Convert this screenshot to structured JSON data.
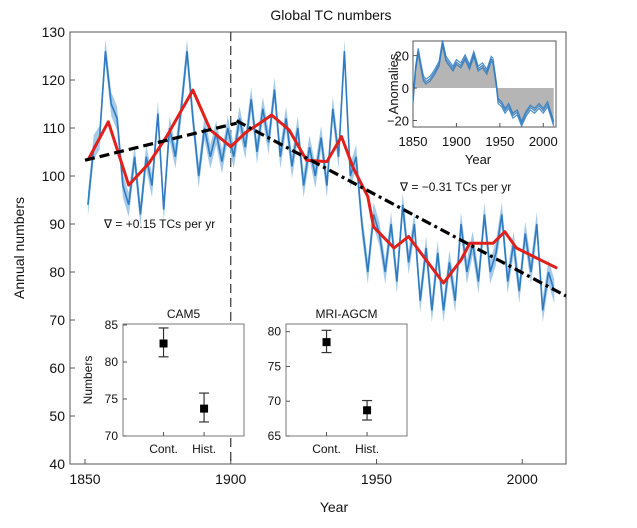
{
  "chart_data": [
    {
      "type": "line",
      "title": "Global TC numbers",
      "xlabel": "Year",
      "ylabel": "Annual numbers",
      "xlim": [
        1845,
        2015
      ],
      "ylim": [
        40,
        130
      ],
      "xticks": [
        1850,
        1900,
        1950,
        2000
      ],
      "yticks": [
        40,
        50,
        60,
        70,
        80,
        90,
        100,
        110,
        120,
        130
      ],
      "grid": false,
      "colors": {
        "annual": "#2f7bbf",
        "band": "#8fbde3",
        "smooth": "#e0201b",
        "trend": "#000000"
      },
      "annual": {
        "x": [
          1851,
          1853,
          1855,
          1857,
          1859,
          1861,
          1863,
          1865,
          1867,
          1869,
          1871,
          1873,
          1875,
          1877,
          1879,
          1881,
          1883,
          1885,
          1887,
          1889,
          1891,
          1893,
          1895,
          1897,
          1899,
          1901,
          1903,
          1905,
          1907,
          1909,
          1911,
          1913,
          1915,
          1917,
          1919,
          1921,
          1923,
          1925,
          1927,
          1929,
          1931,
          1933,
          1935,
          1937,
          1939,
          1941,
          1943,
          1945,
          1947,
          1949,
          1951,
          1953,
          1955,
          1957,
          1959,
          1961,
          1963,
          1965,
          1967,
          1969,
          1971,
          1973,
          1975,
          1977,
          1979,
          1981,
          1983,
          1985,
          1987,
          1989,
          1991,
          1993,
          1995,
          1997,
          1999,
          2001,
          2003,
          2005,
          2007,
          2009,
          2011
        ],
        "y": [
          94,
          106,
          108,
          126,
          115,
          112,
          98,
          94,
          104,
          92,
          104,
          98,
          113,
          93,
          110,
          104,
          114,
          126,
          112,
          100,
          110,
          104,
          109,
          103,
          110,
          104,
          112,
          106,
          116,
          105,
          114,
          107,
          118,
          104,
          112,
          102,
          110,
          98,
          106,
          100,
          108,
          98,
          114,
          104,
          126,
          100,
          104,
          90,
          80,
          92,
          88,
          80,
          90,
          78,
          94,
          82,
          90,
          74,
          85,
          72,
          84,
          72,
          82,
          74,
          90,
          80,
          86,
          78,
          92,
          80,
          84,
          92,
          78,
          86,
          76,
          88,
          80,
          90,
          72,
          80,
          76
        ],
        "spread": 2.5
      },
      "smoothed": {
        "x": [
          1851,
          1858,
          1865,
          1872,
          1878,
          1887,
          1893,
          1900,
          1905,
          1910,
          1914,
          1920,
          1926,
          1933,
          1938,
          1942,
          1947,
          1949,
          1956,
          1961,
          1967,
          1973,
          1979,
          1982,
          1990,
          1994,
          1998,
          2005,
          2012
        ],
        "y": [
          103.3,
          111.3,
          98.1,
          102.7,
          108.2,
          117.9,
          109.6,
          106.1,
          109,
          111,
          112.7,
          109.6,
          103.3,
          103,
          108.2,
          101.7,
          95.7,
          89.4,
          85,
          87.4,
          82.5,
          77.7,
          82.5,
          86,
          86,
          88.4,
          85,
          82.9,
          80.8
        ]
      },
      "trends": [
        {
          "label": "∇ = +0.15 TCs per yr",
          "x": [
            1850,
            1902
          ],
          "y": [
            103.3,
            111
          ]
        },
        {
          "label": "∇ = −0.31 TCs per yr",
          "x": [
            1902,
            2015
          ],
          "y": [
            111.5,
            75
          ]
        }
      ],
      "divider_year": 1900
    },
    {
      "type": "area",
      "xlabel": "Year",
      "ylabel": "Anomalies",
      "xlim": [
        1850,
        2015
      ],
      "ylim": [
        -24,
        29
      ],
      "xticks": [
        1850,
        1900,
        1950,
        2000
      ],
      "yticks": [
        -20,
        0,
        20
      ],
      "x": [
        1850,
        1853,
        1856,
        1859,
        1862,
        1865,
        1870,
        1875,
        1880,
        1884,
        1888,
        1892,
        1896,
        1900,
        1905,
        1910,
        1915,
        1920,
        1925,
        1930,
        1935,
        1940,
        1942,
        1946,
        1948,
        1952,
        1956,
        1960,
        1965,
        1970,
        1975,
        1980,
        1985,
        1990,
        1995,
        2000,
        2005,
        2008,
        2012
      ],
      "y": [
        -8,
        12,
        23,
        14,
        6,
        4,
        6,
        10,
        15,
        28,
        18,
        15,
        12,
        16,
        14,
        19,
        13,
        21,
        12,
        14,
        10,
        18,
        17,
        2,
        -8,
        -10,
        -14,
        -11,
        -17,
        -15,
        -22,
        -16,
        -12,
        -14,
        -11,
        -14,
        -10,
        -15,
        -22
      ]
    },
    {
      "type": "scatter",
      "title": "CAM5",
      "ylabel": "Numbers",
      "categories": [
        "Cont.",
        "Hist."
      ],
      "values": [
        82.5,
        73.7
      ],
      "error_low": [
        80.7,
        71.9
      ],
      "error_high": [
        84.6,
        75.8
      ],
      "ylim": [
        70,
        85
      ],
      "yticks": [
        70,
        75,
        80,
        85
      ]
    },
    {
      "type": "scatter",
      "title": "MRI-AGCM",
      "categories": [
        "Cont.",
        "Hist."
      ],
      "values": [
        78.5,
        68.7
      ],
      "error_low": [
        77,
        67.3
      ],
      "error_high": [
        80.2,
        70.1
      ],
      "ylim": [
        65,
        81
      ],
      "yticks": [
        65,
        70,
        75,
        80
      ]
    }
  ]
}
